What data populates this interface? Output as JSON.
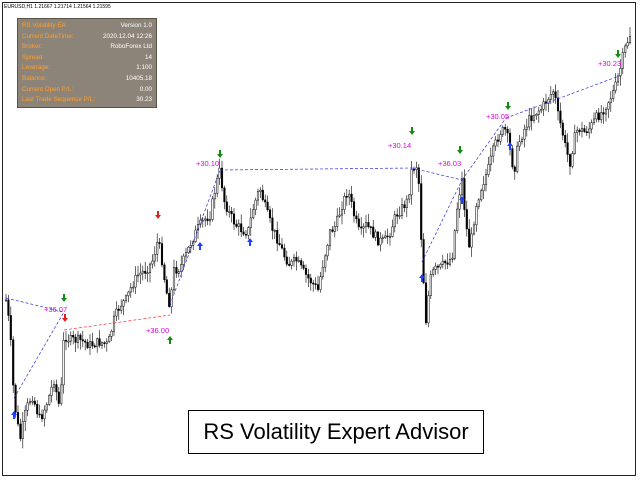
{
  "window": {
    "symbol_line": "EURUSD,H1  1.21667 1.21714 1.21564 1.21595"
  },
  "info_panel": {
    "rows": [
      {
        "label": "RS Volatility EA",
        "value": "Version 1.0"
      },
      {
        "label": "Current DateTime:",
        "value": "2020.12.04 12:26"
      },
      {
        "label": "Broker:",
        "value": "RoboForex Ltd"
      },
      {
        "label": "Spread:",
        "value": "14"
      },
      {
        "label": "Leverage:",
        "value": "1:100"
      },
      {
        "label": "Balance:",
        "value": "10405.18"
      },
      {
        "label": "Current Open P/L:",
        "value": "0.00"
      },
      {
        "label": "Last Trade Sequence P/L:",
        "value": "30.23"
      }
    ]
  },
  "trade_labels": [
    "+36.07",
    "+36.00",
    "+30.10",
    "+30.14",
    "+36.03",
    "+30.05",
    "+30.23"
  ],
  "caption": "RS Volatility Expert Advisor",
  "colors": {
    "panel_bg": "#8c8479",
    "panel_label": "#ff9f2e",
    "panel_value": "#ffffff",
    "profit_label": "#e000e0",
    "buy_arrow": "#1f3fff",
    "sell_arrow_red": "#e02020",
    "sell_arrow_green": "#138a13",
    "buy_arrow_green": "#138a13",
    "trade_line_blue": "#3030e0",
    "trade_line_red": "#ff3030",
    "candle": "#000000"
  },
  "icons": [
    "up-arrow-icon",
    "down-arrow-icon"
  ]
}
